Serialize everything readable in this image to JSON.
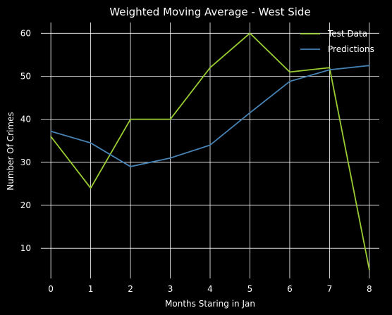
{
  "chart_data": {
    "type": "line",
    "title": "Weighted Moving Average - West Side",
    "xlabel": "Months Staring in Jan",
    "ylabel": "Number Of Crimes",
    "x": [
      0,
      1,
      2,
      3,
      4,
      5,
      6,
      7,
      8
    ],
    "xticks": [
      "0",
      "1",
      "2",
      "3",
      "4",
      "5",
      "6",
      "7",
      "8"
    ],
    "yticks": [
      "10",
      "20",
      "30",
      "40",
      "50",
      "60"
    ],
    "xlim": [
      -0.25,
      8.25
    ],
    "ylim": [
      3,
      62.5
    ],
    "grid": true,
    "legend_position": "top-right",
    "series": [
      {
        "name": "Test Data",
        "color": "#9acd32",
        "values": [
          36,
          24,
          40,
          40,
          52,
          60,
          51,
          52,
          5
        ]
      },
      {
        "name": "Predictions",
        "color": "#4682b4",
        "values": [
          37.2,
          34.5,
          29,
          31,
          34,
          41.5,
          48.8,
          51.5,
          52.5
        ]
      }
    ]
  }
}
